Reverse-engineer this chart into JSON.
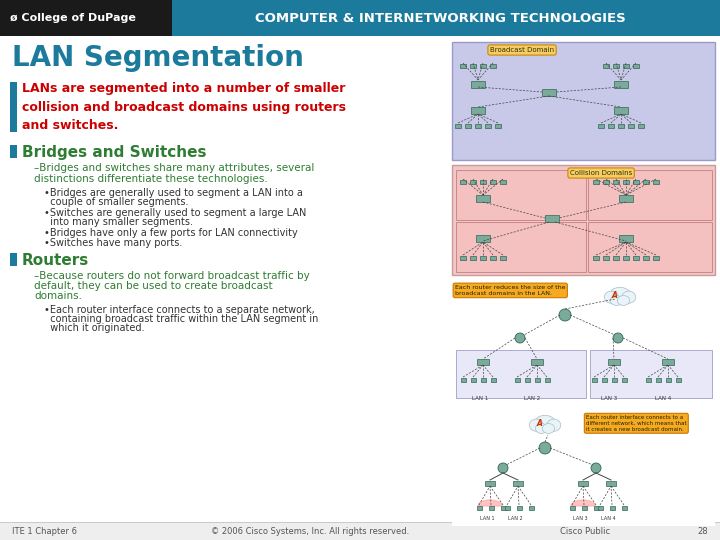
{
  "title": "LAN Segmentation",
  "header_bg_color": "#1c7a9c",
  "header_text_color": "#ffffff",
  "header_left_bg": "#1a1a1a",
  "header_left_text": "ø College of DuPage",
  "header_right_text": "COMPUTER & INTERNETWORKING TECHNOLOGIES",
  "slide_bg": "#f4f4f4",
  "title_color": "#1c7a9c",
  "bullet_marker_color": "#1c7a9c",
  "bullet1_text": "LANs are segmented into a number of smaller\ncollision and broadcast domains using routers\nand switches.",
  "bullet1_color": "#cc0000",
  "section2_title": "Bridges and Switches",
  "section2_color": "#2e7d32",
  "sub1_line1": "–Bridges and switches share many attributes, several",
  "sub1_line2": "distinctions differentiate these technologies.",
  "sub1_color": "#2e7d32",
  "b2a_line1": "•Bridges are generally used to segment a LAN into a",
  "b2a_line2": "  couple of smaller segments.",
  "b2b_line1": "•Switches are generally used to segment a large LAN",
  "b2b_line2": "  into many smaller segments.",
  "b2c": "•Bridges have only a few ports for LAN connectivity",
  "b2d": "•Switches have many ports.",
  "sub_bullet_color": "#333333",
  "section3_title": "Routers",
  "section3_color": "#2e7d32",
  "sub2_line1": "–Because routers do not forward broadcast traffic by",
  "sub2_line2": "default, they can be used to create broadcast",
  "sub2_line3": "domains.",
  "sub2_color": "#2e7d32",
  "b3a_line1": "•Each router interface connects to a separate network,",
  "b3a_line2": "  containing broadcast traffic within the LAN segment in",
  "b3a_line3": "  which it originated.",
  "footer_left": "ITE 1 Chapter 6",
  "footer_center": "© 2006 Cisco Systems, Inc. All rights reserved.",
  "footer_right": "Cisco Public",
  "footer_page": "28",
  "footer_color": "#555555",
  "diag1_bg": "#c8c8e8",
  "diag2_bg": "#f0c8c8",
  "diag3_bg": "#d0dff0",
  "diag4_bg": "#e8e8f8",
  "node_color": "#7aaa99",
  "node_edge": "#336655",
  "router_color": "#7aaa99",
  "label_box_color": "#f5cc66",
  "label_box_edge": "#cc8800",
  "label_text_color": "#333300",
  "cloud_color": "#e8f4f8",
  "cloud_edge": "#aabbcc"
}
